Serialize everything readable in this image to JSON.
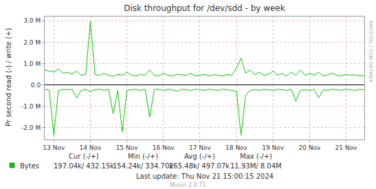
{
  "chart_data": {
    "type": "line",
    "title": "Disk throughput for /dev/sdd - by week",
    "y_label": "Pr second read (-) / write (+)",
    "side_text": "RRDTOOL / TOBI OETIKER",
    "grid": true,
    "x": [
      12.75,
      12.875,
      13,
      13.125,
      13.25,
      13.375,
      13.5,
      13.625,
      13.75,
      13.875,
      14,
      14.125,
      14.25,
      14.375,
      14.5,
      14.625,
      14.75,
      14.875,
      15,
      15.125,
      15.25,
      15.375,
      15.5,
      15.625,
      15.75,
      15.875,
      16,
      16.125,
      16.25,
      16.375,
      16.5,
      16.625,
      16.75,
      16.875,
      17,
      17.125,
      17.25,
      17.375,
      17.5,
      17.625,
      17.75,
      17.875,
      18,
      18.125,
      18.25,
      18.375,
      18.5,
      18.625,
      18.75,
      18.875,
      19,
      19.125,
      19.25,
      19.375,
      19.5,
      19.625,
      19.75,
      19.875,
      20,
      20.125,
      20.25,
      20.375,
      20.5,
      20.625,
      20.75,
      20.875,
      21,
      21.125,
      21.25,
      21.375,
      21.5
    ],
    "xlim": [
      12.75,
      21.5
    ],
    "xticks": [
      {
        "value": 13,
        "label": "13 Nov"
      },
      {
        "value": 14,
        "label": "14 Nov"
      },
      {
        "value": 15,
        "label": "15 Nov"
      },
      {
        "value": 16,
        "label": "16 Nov"
      },
      {
        "value": 17,
        "label": "17 Nov"
      },
      {
        "value": 18,
        "label": "18 Nov"
      },
      {
        "value": 19,
        "label": "19 Nov"
      },
      {
        "value": 20,
        "label": "20 Nov"
      },
      {
        "value": 21,
        "label": "21 Nov"
      }
    ],
    "ylim": [
      -2550000,
      3200000
    ],
    "yticks": [
      {
        "value": -2000000,
        "label": "-2.0 M"
      },
      {
        "value": -1000000,
        "label": "-1.0 M"
      },
      {
        "value": 0,
        "label": "0.0"
      },
      {
        "value": 1000000,
        "label": "1.0 M"
      },
      {
        "value": 2000000,
        "label": "2.0 M"
      },
      {
        "value": 3000000,
        "label": "3.0 M"
      }
    ],
    "series": [
      {
        "name": "Bytes",
        "color": "#00cc00",
        "write": [
          700000,
          650000,
          600000,
          750000,
          550000,
          600000,
          500000,
          650000,
          450000,
          500000,
          3000000,
          500000,
          450000,
          550000,
          450000,
          400000,
          500000,
          450000,
          600000,
          450000,
          420000,
          500000,
          450000,
          700000,
          450000,
          420000,
          550000,
          450000,
          420000,
          500000,
          480000,
          450000,
          550000,
          420000,
          450000,
          500000,
          420000,
          480000,
          450000,
          420000,
          500000,
          450000,
          800000,
          1250000,
          550000,
          700000,
          480000,
          600000,
          450000,
          500000,
          650000,
          450000,
          550000,
          420000,
          600000,
          450000,
          700000,
          450000,
          550000,
          450000,
          600000,
          420000,
          480000,
          550000,
          450000,
          420000,
          500000,
          450000,
          480000,
          420000,
          450000
        ],
        "read": [
          -200000,
          -250000,
          -2350000,
          -250000,
          -200000,
          -220000,
          -200000,
          -600000,
          -250000,
          -200000,
          -300000,
          -220000,
          -200000,
          -250000,
          -200000,
          -1350000,
          -250000,
          -2200000,
          -250000,
          -220000,
          -200000,
          -250000,
          -200000,
          -1500000,
          -220000,
          -200000,
          -250000,
          -200000,
          -220000,
          -300000,
          -200000,
          -220000,
          -250000,
          -200000,
          -220000,
          -250000,
          -200000,
          -220000,
          -250000,
          -200000,
          -220000,
          -250000,
          -300000,
          -2350000,
          -500000,
          -250000,
          -220000,
          -250000,
          -200000,
          -220000,
          -250000,
          -200000,
          -220000,
          -250000,
          -200000,
          -750000,
          -250000,
          -220000,
          -250000,
          -200000,
          -600000,
          -220000,
          -250000,
          -200000,
          -220000,
          -250000,
          -200000,
          -220000,
          -250000,
          -200000,
          -220000
        ]
      }
    ],
    "stats": {
      "columns": [
        "Cur (-/+)",
        "Min (-/+)",
        "Avg (-/+)",
        "Max (-/+)"
      ],
      "values": [
        "197.04k/ 432.15k",
        "154.24k/ 334.70k",
        "265.48k/ 497.07k",
        "11.93M/ 8.04M"
      ]
    },
    "last_update": "Last update: Thu Nov 21 15:00:15 2024",
    "version": "Munin 2.0.73"
  }
}
